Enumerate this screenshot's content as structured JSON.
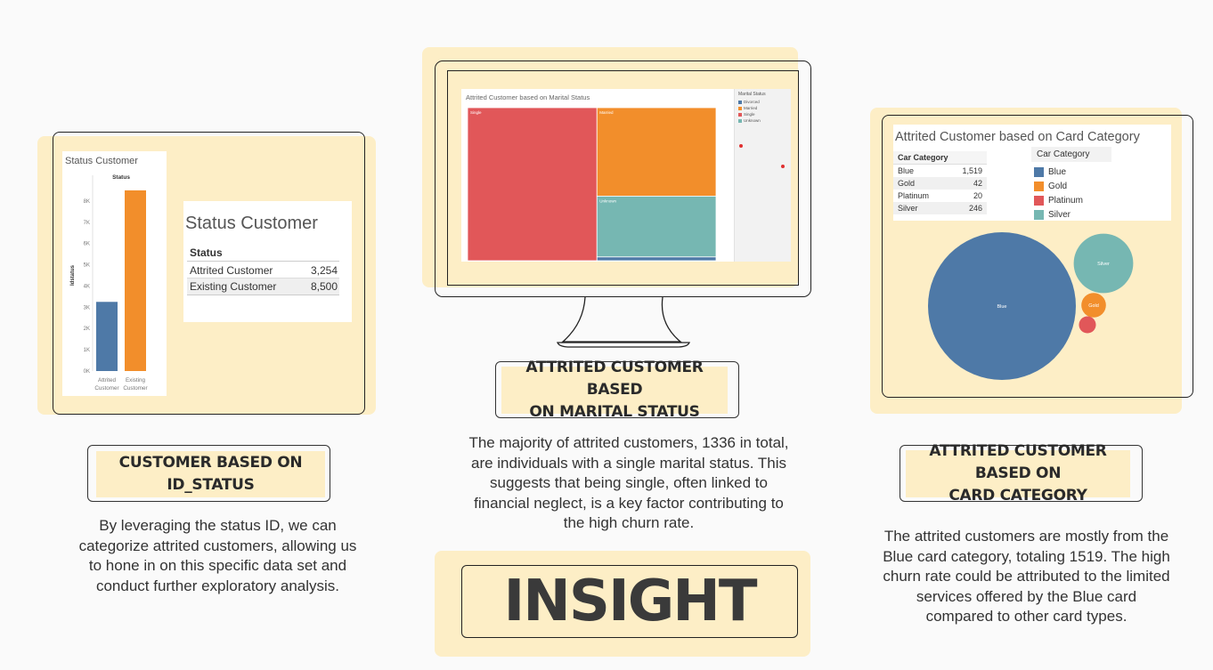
{
  "colors": {
    "blue": "#4e79a7",
    "orange": "#f28e2b",
    "red": "#e15759",
    "teal": "#76b7b2",
    "cream": "#fdeec6",
    "dark": "#2a2a2a"
  },
  "left_panel": {
    "chart_title": "Status Customer",
    "table_title": "Status Customer",
    "table_header": "Status",
    "rows": [
      {
        "label": "Attrited Customer",
        "value": "3,254"
      },
      {
        "label": "Existing Customer",
        "value": "8,500"
      }
    ],
    "section_title_line1": "CUSTOMER BASED ON",
    "section_title_line2": "ID_STATUS",
    "description": "By leveraging the status ID, we can categorize attrited customers, allowing us to hone in on this specific data set and conduct further exploratory analysis."
  },
  "middle_panel": {
    "chart_title": "Attrited Customer based on Marital Status",
    "legend_title": "Marital Status",
    "legend_items": [
      "Divorced",
      "Married",
      "Single",
      "Unknown"
    ],
    "section_title_line1": "ATTRITED CUSTOMER BASED",
    "section_title_line2": "ON MARITAL STATUS",
    "description": "The majority of attrited customers, 1336 in total, are individuals with a single marital status. This suggests that being single, often linked to financial neglect, is a key factor contributing to the high churn rate."
  },
  "right_panel": {
    "chart_title": "Attrited Customer based on Card Category",
    "table_header": "Car Category",
    "rows": [
      {
        "label": "Blue",
        "value": "1,519"
      },
      {
        "label": "Gold",
        "value": "42"
      },
      {
        "label": "Platinum",
        "value": "20"
      },
      {
        "label": "Silver",
        "value": "246"
      }
    ],
    "legend_title": "Car Category",
    "legend_items": [
      "Blue",
      "Gold",
      "Platinum",
      "Silver"
    ],
    "section_title_line1": "ATTRITED CUSTOMER BASED ON",
    "section_title_line2": "CARD CATEGORY",
    "description": "The attrited customers are mostly from the Blue card category, totaling 1519. The high churn rate could be attributed to the limited services offered by the Blue card compared to other card types."
  },
  "insight_label": "INSIGHT",
  "chart_data": [
    {
      "type": "bar",
      "title": "Status",
      "ylabel": "Idstatus",
      "categories": [
        "Attrited Customer",
        "Existing Customer"
      ],
      "category_lines": [
        [
          "Attrited",
          "Customer"
        ],
        [
          "Existing",
          "Customer"
        ]
      ],
      "values": [
        3254,
        8500
      ],
      "ylim": [
        0,
        9000
      ],
      "yticks": [
        "0K",
        "1K",
        "2K",
        "3K",
        "4K",
        "5K",
        "6K",
        "7K",
        "8K"
      ],
      "grid": false
    },
    {
      "type": "treemap",
      "title": "Attrited Customer based on Marital Status",
      "series": [
        {
          "name": "Single",
          "value": 1336
        },
        {
          "name": "Married",
          "value": 711
        },
        {
          "name": "Unknown",
          "value": 489
        },
        {
          "name": "Divorced",
          "value": 30
        }
      ],
      "legend_placement": "right"
    },
    {
      "type": "bubble",
      "title": "Attrited Customer based on Card Category",
      "categories": [
        "Blue",
        "Silver",
        "Gold",
        "Platinum"
      ],
      "values": [
        1519,
        246,
        42,
        20
      ],
      "legend_placement": "top-right"
    }
  ]
}
